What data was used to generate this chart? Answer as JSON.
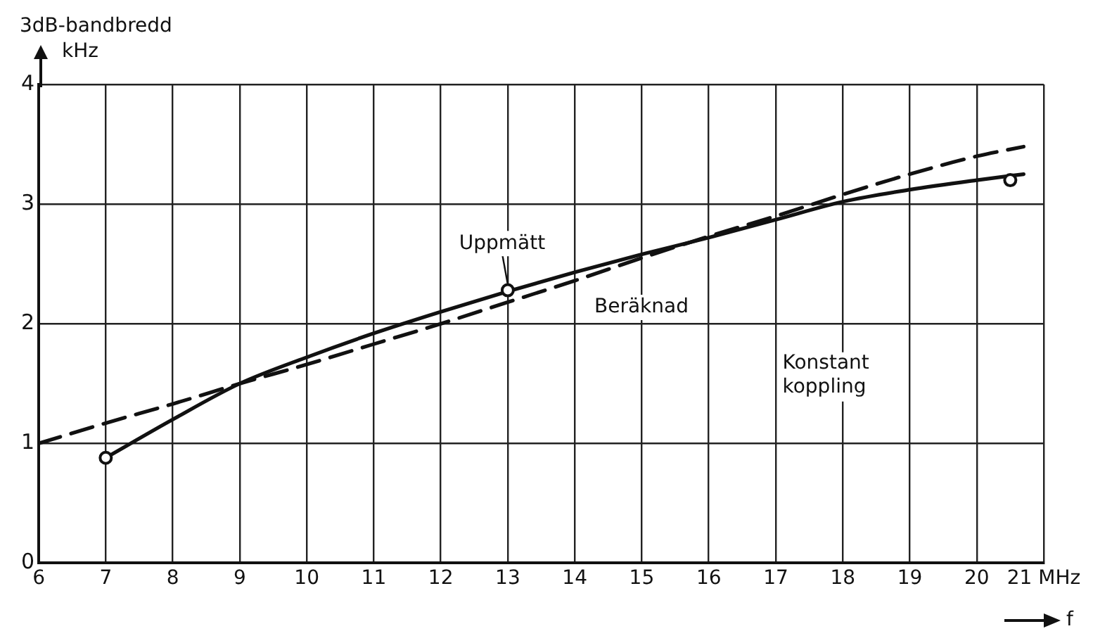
{
  "chart_data": {
    "type": "line",
    "xlabel": "f",
    "ylabel": "3dB-bandbredd kHz",
    "xlim": [
      6,
      21
    ],
    "xticks": [
      6,
      7,
      8,
      9,
      10,
      11,
      12,
      13,
      14,
      15,
      16,
      17,
      18,
      19,
      20,
      {
        "value": 21,
        "label": "21 MHz"
      }
    ],
    "ylim": [
      0,
      4
    ],
    "yticks": [
      0,
      1,
      2,
      3,
      4
    ],
    "grid": true,
    "legend": false,
    "annotations": [
      "Konstant koppling"
    ],
    "series": [
      {
        "name": "Uppmätt",
        "color": "#111111",
        "line_style": "solid",
        "marker": "none",
        "x": [
          7,
          8,
          9,
          10,
          11,
          12,
          13,
          14,
          15,
          16,
          17,
          18,
          19,
          20,
          20.7
        ],
        "values": [
          0.88,
          1.2,
          1.5,
          1.72,
          1.92,
          2.1,
          2.27,
          2.43,
          2.58,
          2.72,
          2.87,
          3.02,
          3.12,
          3.2,
          3.25
        ]
      },
      {
        "name": "Beräknad",
        "color": "#111111",
        "line_style": "dashed",
        "marker": "none",
        "x": [
          6,
          7,
          8,
          9,
          10,
          11,
          12,
          13,
          14,
          15,
          16,
          17,
          18,
          19,
          20,
          20.7
        ],
        "values": [
          1.0,
          1.17,
          1.33,
          1.5,
          1.66,
          1.83,
          2.0,
          2.18,
          2.36,
          2.55,
          2.73,
          2.9,
          3.08,
          3.25,
          3.4,
          3.48
        ]
      },
      {
        "type": "scatter",
        "color": "#111111",
        "marker": "circle",
        "x": [
          7,
          13,
          20.5
        ],
        "values": [
          0.88,
          2.28,
          3.2
        ]
      }
    ]
  }
}
